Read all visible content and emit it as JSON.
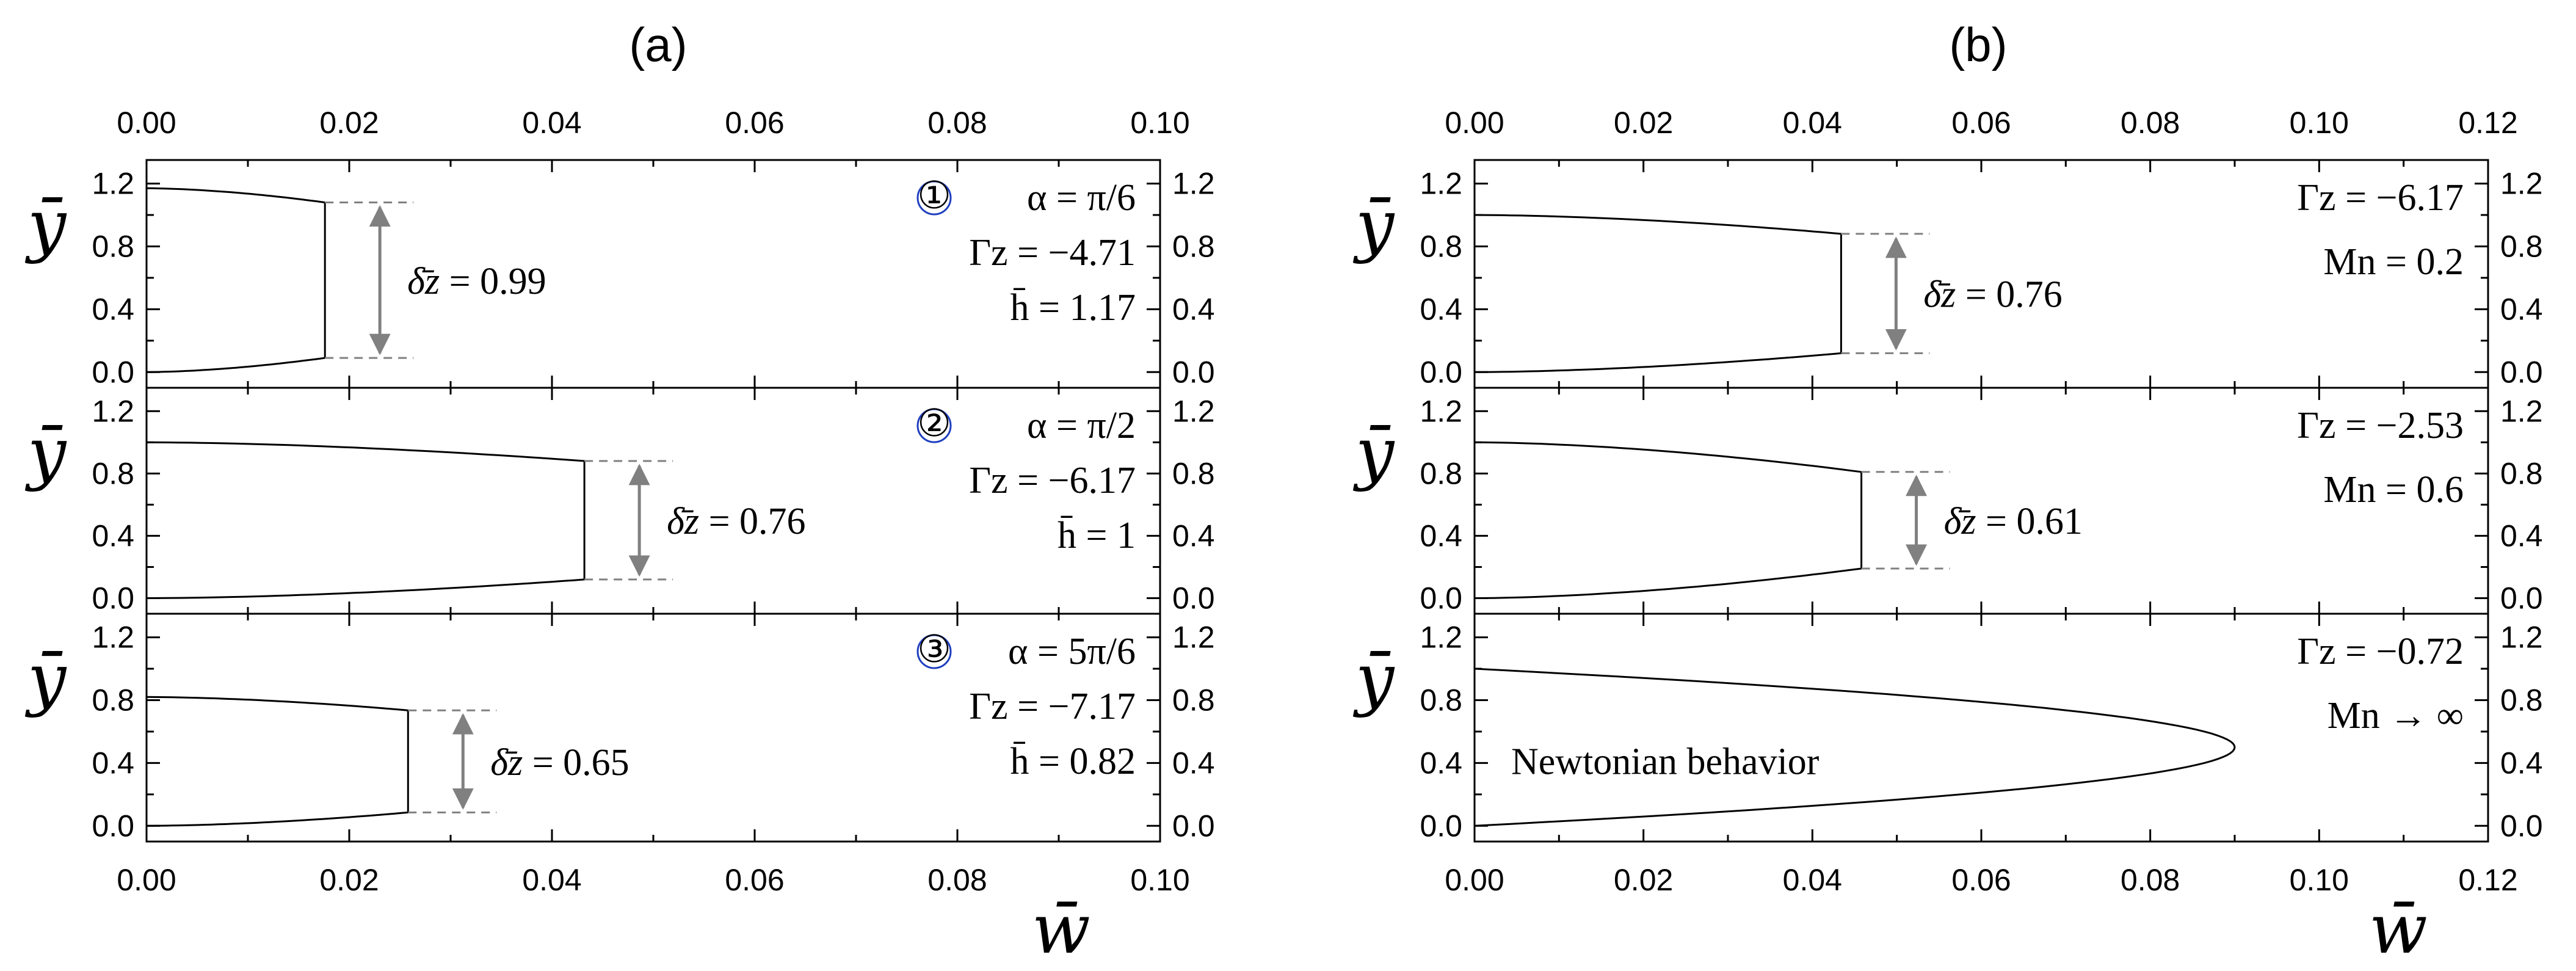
{
  "figure": {
    "panels": [
      {
        "id": "a",
        "title": "(a)",
        "x_axis_label": "w̄",
        "y_axis_label": "ȳ",
        "xlim": [
          0,
          0.1
        ],
        "x_ticks": [
          "0.00",
          "0.02",
          "0.04",
          "0.06",
          "0.08",
          "0.10"
        ],
        "y_ticks": [
          "0.0",
          "0.4",
          "0.8",
          "1.2"
        ],
        "subplots": [
          {
            "marker": "①",
            "alpha": "α = π/6",
            "gamma": "Γz = −4.71",
            "h": "h̄ = 1.17",
            "delta": "δ̄z = 0.99",
            "h_val": 1.17,
            "plug_w": 0.0176,
            "plug_low": 0.09,
            "plug_high": 1.08,
            "wall_w": 0.0
          },
          {
            "marker": "②",
            "alpha": "α = π/2",
            "gamma": "Γz = −6.17",
            "h": "h̄ = 1",
            "delta": "δ̄z = 0.76",
            "h_val": 1.0,
            "plug_w": 0.0432,
            "plug_low": 0.12,
            "plug_high": 0.88,
            "wall_w": 0.0
          },
          {
            "marker": "③",
            "alpha": "α = 5π/6",
            "gamma": "Γz = −7.17",
            "h": "h̄ = 0.82",
            "delta": "δ̄z = 0.65",
            "h_val": 0.82,
            "plug_w": 0.0258,
            "plug_low": 0.085,
            "plug_high": 0.735,
            "wall_w": 0.0
          }
        ]
      },
      {
        "id": "b",
        "title": "(b)",
        "x_axis_label": "w̄",
        "y_axis_label": "ȳ",
        "xlim": [
          0,
          0.12
        ],
        "x_ticks": [
          "0.00",
          "0.02",
          "0.04",
          "0.06",
          "0.08",
          "0.10",
          "0.12"
        ],
        "y_ticks": [
          "0.0",
          "0.4",
          "0.8",
          "1.2"
        ],
        "subplots": [
          {
            "gamma": "Γz = −6.17",
            "mn": "Mn = 0.2",
            "delta": "δ̄z = 0.76",
            "h_val": 1.0,
            "plug_w": 0.0434,
            "plug_low": 0.12,
            "plug_high": 0.88
          },
          {
            "gamma": "Γz = −2.53",
            "mn": "Mn = 0.6",
            "delta": "δ̄z = 0.61",
            "h_val": 1.0,
            "plug_w": 0.0458,
            "plug_low": 0.19,
            "plug_high": 0.81
          },
          {
            "gamma": "Γz = −0.72",
            "mn": "Mn → ∞",
            "note": "Newtonian behavior",
            "h_val": 1.0,
            "peak_w": 0.09,
            "peak_y": 0.5
          }
        ]
      }
    ]
  },
  "chart_data": [
    {
      "type": "line",
      "panel": "(a)",
      "xlabel": "w̄",
      "ylabel": "ȳ",
      "xlim": [
        0,
        0.1
      ],
      "ylim": [
        -0.1,
        1.35
      ],
      "series": [
        {
          "name": "α = π/6",
          "x": [
            0.0,
            0.0176,
            0.0176,
            0.0176,
            0.0
          ],
          "y": [
            1.17,
            1.08,
            0.585,
            0.09,
            0.0
          ]
        },
        {
          "name": "α = π/2",
          "x": [
            0.0,
            0.0432,
            0.0432,
            0.0432,
            0.0
          ],
          "y": [
            1.0,
            0.88,
            0.5,
            0.12,
            0.0
          ]
        },
        {
          "name": "α = 5π/6",
          "x": [
            0.0,
            0.0258,
            0.0258,
            0.0258,
            0.0
          ],
          "y": [
            0.82,
            0.735,
            0.41,
            0.085,
            0.0
          ]
        }
      ]
    },
    {
      "type": "line",
      "panel": "(b)",
      "xlabel": "w̄",
      "ylabel": "ȳ",
      "xlim": [
        0,
        0.12
      ],
      "ylim": [
        -0.1,
        1.35
      ],
      "series": [
        {
          "name": "Mn = 0.2",
          "x": [
            0.0,
            0.0434,
            0.0434,
            0.0434,
            0.0
          ],
          "y": [
            1.0,
            0.88,
            0.5,
            0.12,
            0.0
          ]
        },
        {
          "name": "Mn = 0.6",
          "x": [
            0.0,
            0.0458,
            0.0458,
            0.0458,
            0.0
          ],
          "y": [
            1.0,
            0.81,
            0.5,
            0.19,
            0.0
          ]
        },
        {
          "name": "Mn → ∞",
          "x": [
            0.0,
            0.0484,
            0.072,
            0.09,
            0.072,
            0.0484,
            0.0
          ],
          "y": [
            1.0,
            0.86,
            0.725,
            0.5,
            0.275,
            0.14,
            0.0
          ]
        }
      ]
    }
  ]
}
